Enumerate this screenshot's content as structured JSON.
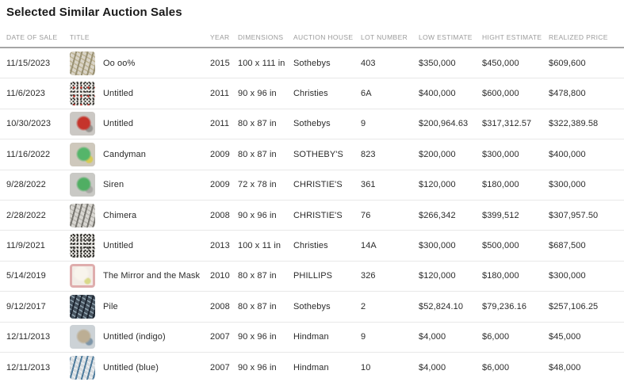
{
  "page": {
    "title": "Selected Similar Auction Sales"
  },
  "colors": {
    "background": "#ffffff",
    "title_text": "#1a1a1a",
    "header_text": "#9b9b9b",
    "cell_text": "#2b2b2b",
    "header_border": "#a6a6a6",
    "row_border": "#e8e8e8"
  },
  "table": {
    "columns": [
      "DATE OF SALE",
      "TITLE",
      "YEAR",
      "DIMENSIONS",
      "AUCTION HOUSE",
      "LOT NUMBER",
      "LOW ESTIMATE",
      "HIGHT ESTIMATE",
      "REALIZED PRICE"
    ],
    "rows": [
      {
        "date": "11/15/2023",
        "title": "Oo oo%",
        "year": "2015",
        "dimensions": "100 x 111 in",
        "auction_house": "Sothebys",
        "lot": "403",
        "low": "$350,000",
        "high": "$450,000",
        "realized": "$609,600",
        "thumb": {
          "name": "artwork-thumbnail",
          "pattern": "strokes",
          "colors": [
            "#d9d4c7",
            "#9a9274",
            "#bfb495"
          ]
        }
      },
      {
        "date": "11/6/2023",
        "title": "Untitled",
        "year": "2011",
        "dimensions": "90 x 96 in",
        "auction_house": "Christies",
        "lot": "6A",
        "low": "$400,000",
        "high": "$600,000",
        "realized": "$478,800",
        "thumb": {
          "name": "artwork-thumbnail",
          "pattern": "speckle",
          "colors": [
            "#edebe7",
            "#3b3a36",
            "#c33128"
          ]
        }
      },
      {
        "date": "10/30/2023",
        "title": "Untitled",
        "year": "2011",
        "dimensions": "80 x 87 in",
        "auction_house": "Sothebys",
        "lot": "9",
        "low": "$200,964.63",
        "high": "$317,312.57",
        "realized": "$322,389.58",
        "thumb": {
          "name": "artwork-thumbnail",
          "pattern": "blob",
          "colors": [
            "#cbc8c4",
            "#c5342b",
            "#979490"
          ]
        }
      },
      {
        "date": "11/16/2022",
        "title": "Candyman",
        "year": "2009",
        "dimensions": "80 x 87 in",
        "auction_house": "SOTHEBY'S",
        "lot": "823",
        "low": "$200,000",
        "high": "$300,000",
        "realized": "$400,000",
        "thumb": {
          "name": "artwork-thumbnail",
          "pattern": "blob",
          "colors": [
            "#cec8bc",
            "#55b56a",
            "#d7cb56"
          ]
        }
      },
      {
        "date": "9/28/2022",
        "title": "Siren",
        "year": "2009",
        "dimensions": "72 x 78 in",
        "auction_house": "CHRISTIE'S",
        "lot": "361",
        "low": "$120,000",
        "high": "$180,000",
        "realized": "$300,000",
        "thumb": {
          "name": "artwork-thumbnail",
          "pattern": "blob",
          "colors": [
            "#c9c9c5",
            "#50ae63",
            "#a9a9a5"
          ]
        }
      },
      {
        "date": "2/28/2022",
        "title": "Chimera",
        "year": "2008",
        "dimensions": "90 x 96 in",
        "auction_house": "CHRISTIE'S",
        "lot": "76",
        "low": "$266,342",
        "high": "$399,512",
        "realized": "$307,957.50",
        "thumb": {
          "name": "artwork-thumbnail",
          "pattern": "strokes",
          "colors": [
            "#d8d6d1",
            "#787670",
            "#b9b7b1"
          ]
        }
      },
      {
        "date": "11/9/2021",
        "title": "Untitled",
        "year": "2013",
        "dimensions": "100 x 11 in",
        "auction_house": "Christies",
        "lot": "14A",
        "low": "$300,000",
        "high": "$500,000",
        "realized": "$687,500",
        "thumb": {
          "name": "artwork-thumbnail",
          "pattern": "speckle",
          "colors": [
            "#e9e7e3",
            "#282723",
            "#55534f"
          ]
        }
      },
      {
        "date": "5/14/2019",
        "title": "The Mirror and the Mask",
        "year": "2010",
        "dimensions": "80 x 87 in",
        "auction_house": "PHILLIPS",
        "lot": "326",
        "low": "$120,000",
        "high": "$180,000",
        "realized": "$300,000",
        "thumb": {
          "name": "artwork-thumbnail",
          "pattern": "frame",
          "colors": [
            "#f2ece6",
            "#f8f4ec",
            "#dfadad",
            "#d9d98a"
          ]
        }
      },
      {
        "date": "9/12/2017",
        "title": "Pile",
        "year": "2008",
        "dimensions": "80 x 87 in",
        "auction_house": "Sothebys",
        "lot": "2",
        "low": "$52,824.10",
        "high": "$79,236.16",
        "realized": "$257,106.25",
        "thumb": {
          "name": "artwork-thumbnail",
          "pattern": "strokes",
          "colors": [
            "#46535f",
            "#1d2530",
            "#91a4b1"
          ]
        }
      },
      {
        "date": "12/11/2013",
        "title": "Untitled (indigo)",
        "year": "2007",
        "dimensions": "90 x 96 in",
        "auction_house": "Hindman",
        "lot": "9",
        "low": "$4,000",
        "high": "$6,000",
        "realized": "$45,000",
        "thumb": {
          "name": "artwork-thumbnail",
          "pattern": "blob",
          "colors": [
            "#ccd2d6",
            "#bcae94",
            "#7e96a9"
          ]
        }
      },
      {
        "date": "12/11/2013",
        "title": "Untitled (blue)",
        "year": "2007",
        "dimensions": "90 x 96 in",
        "auction_house": "Hindman",
        "lot": "10",
        "low": "$4,000",
        "high": "$6,000",
        "realized": "$48,000",
        "thumb": {
          "name": "artwork-thumbnail",
          "pattern": "strokes",
          "colors": [
            "#d6dbdf",
            "#507d9e",
            "#edf0f2"
          ]
        }
      }
    ]
  }
}
